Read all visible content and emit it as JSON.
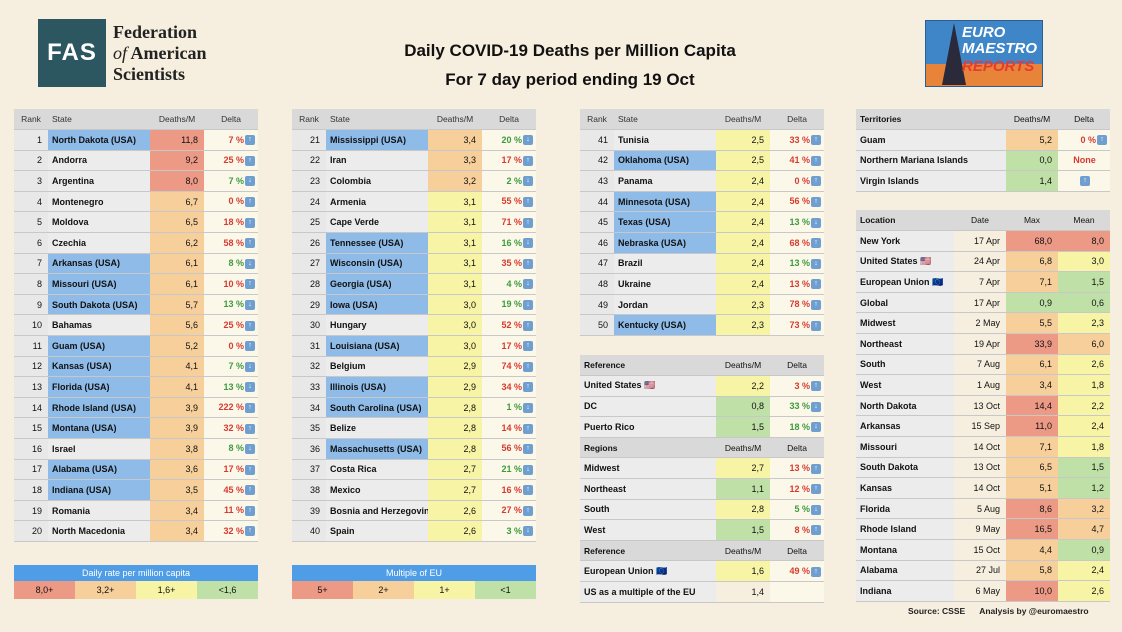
{
  "logo": {
    "abbr": "FAS",
    "line1": "Federation",
    "line2a": "of",
    "line2b": " American",
    "line3": "Scientists"
  },
  "title": {
    "line1": "Daily COVID-19 Deaths per Million Capita",
    "line2": "For 7 day period ending 19 Oct"
  },
  "badge": {
    "line1": "EURO",
    "line2": "MAESTRO",
    "line3": "REPORTS"
  },
  "headers": {
    "rank": "Rank",
    "state": "State",
    "deaths": "Deaths/M",
    "delta": "Delta"
  },
  "rows": [
    {
      "rank": "1",
      "name": "North Dakota (USA)",
      "usa": true,
      "val": "11,8",
      "cls": "v8",
      "delta": "7 %",
      "dir": "up"
    },
    {
      "rank": "2",
      "name": "Andorra",
      "usa": false,
      "val": "9,2",
      "cls": "v8",
      "delta": "25 %",
      "dir": "up"
    },
    {
      "rank": "3",
      "name": "Argentina",
      "usa": false,
      "val": "8,0",
      "cls": "v8",
      "delta": "7 %",
      "dir": "down"
    },
    {
      "rank": "4",
      "name": "Montenegro",
      "usa": false,
      "val": "6,7",
      "cls": "v3",
      "delta": "0 %",
      "dir": "up"
    },
    {
      "rank": "5",
      "name": "Moldova",
      "usa": false,
      "val": "6,5",
      "cls": "v3",
      "delta": "18 %",
      "dir": "up"
    },
    {
      "rank": "6",
      "name": "Czechia",
      "usa": false,
      "val": "6,2",
      "cls": "v3",
      "delta": "58 %",
      "dir": "up"
    },
    {
      "rank": "7",
      "name": "Arkansas (USA)",
      "usa": true,
      "val": "6,1",
      "cls": "v3",
      "delta": "8 %",
      "dir": "down"
    },
    {
      "rank": "8",
      "name": "Missouri (USA)",
      "usa": true,
      "val": "6,1",
      "cls": "v3",
      "delta": "10 %",
      "dir": "up"
    },
    {
      "rank": "9",
      "name": "South Dakota (USA)",
      "usa": true,
      "val": "5,7",
      "cls": "v3",
      "delta": "13 %",
      "dir": "down"
    },
    {
      "rank": "10",
      "name": "Bahamas",
      "usa": false,
      "val": "5,6",
      "cls": "v3",
      "delta": "25 %",
      "dir": "up"
    },
    {
      "rank": "11",
      "name": "Guam (USA)",
      "usa": true,
      "val": "5,2",
      "cls": "v3",
      "delta": "0 %",
      "dir": "up"
    },
    {
      "rank": "12",
      "name": "Kansas (USA)",
      "usa": true,
      "val": "4,1",
      "cls": "v3",
      "delta": "7 %",
      "dir": "down"
    },
    {
      "rank": "13",
      "name": "Florida (USA)",
      "usa": true,
      "val": "4,1",
      "cls": "v3",
      "delta": "13 %",
      "dir": "down"
    },
    {
      "rank": "14",
      "name": "Rhode Island (USA)",
      "usa": true,
      "val": "3,9",
      "cls": "v3",
      "delta": "222 %",
      "dir": "up"
    },
    {
      "rank": "15",
      "name": "Montana (USA)",
      "usa": true,
      "val": "3,9",
      "cls": "v3",
      "delta": "32 %",
      "dir": "up"
    },
    {
      "rank": "16",
      "name": "Israel",
      "usa": false,
      "val": "3,8",
      "cls": "v3",
      "delta": "8 %",
      "dir": "down"
    },
    {
      "rank": "17",
      "name": "Alabama (USA)",
      "usa": true,
      "val": "3,6",
      "cls": "v3",
      "delta": "17 %",
      "dir": "up"
    },
    {
      "rank": "18",
      "name": "Indiana (USA)",
      "usa": true,
      "val": "3,5",
      "cls": "v3",
      "delta": "45 %",
      "dir": "up"
    },
    {
      "rank": "19",
      "name": "Romania",
      "usa": false,
      "val": "3,4",
      "cls": "v3",
      "delta": "11 %",
      "dir": "up"
    },
    {
      "rank": "20",
      "name": "North Macedonia",
      "usa": false,
      "val": "3,4",
      "cls": "v3",
      "delta": "32 %",
      "dir": "up"
    },
    {
      "rank": "21",
      "name": "Mississippi (USA)",
      "usa": true,
      "val": "3,4",
      "cls": "v3",
      "delta": "20 %",
      "dir": "down"
    },
    {
      "rank": "22",
      "name": "Iran",
      "usa": false,
      "val": "3,3",
      "cls": "v3",
      "delta": "17 %",
      "dir": "up"
    },
    {
      "rank": "23",
      "name": "Colombia",
      "usa": false,
      "val": "3,2",
      "cls": "v3",
      "delta": "2 %",
      "dir": "down"
    },
    {
      "rank": "24",
      "name": "Armenia",
      "usa": false,
      "val": "3,1",
      "cls": "v1",
      "delta": "55 %",
      "dir": "up"
    },
    {
      "rank": "25",
      "name": "Cape Verde",
      "usa": false,
      "val": "3,1",
      "cls": "v1",
      "delta": "71 %",
      "dir": "up"
    },
    {
      "rank": "26",
      "name": "Tennessee (USA)",
      "usa": true,
      "val": "3,1",
      "cls": "v1",
      "delta": "16 %",
      "dir": "down"
    },
    {
      "rank": "27",
      "name": "Wisconsin (USA)",
      "usa": true,
      "val": "3,1",
      "cls": "v1",
      "delta": "35 %",
      "dir": "up"
    },
    {
      "rank": "28",
      "name": "Georgia (USA)",
      "usa": true,
      "val": "3,1",
      "cls": "v1",
      "delta": "4 %",
      "dir": "down"
    },
    {
      "rank": "29",
      "name": "Iowa (USA)",
      "usa": true,
      "val": "3,0",
      "cls": "v1",
      "delta": "19 %",
      "dir": "down"
    },
    {
      "rank": "30",
      "name": "Hungary",
      "usa": false,
      "val": "3,0",
      "cls": "v1",
      "delta": "52 %",
      "dir": "up"
    },
    {
      "rank": "31",
      "name": "Louisiana (USA)",
      "usa": true,
      "val": "3,0",
      "cls": "v1",
      "delta": "17 %",
      "dir": "up"
    },
    {
      "rank": "32",
      "name": "Belgium",
      "usa": false,
      "val": "2,9",
      "cls": "v1",
      "delta": "74 %",
      "dir": "up"
    },
    {
      "rank": "33",
      "name": "Illinois (USA)",
      "usa": true,
      "val": "2,9",
      "cls": "v1",
      "delta": "34 %",
      "dir": "up"
    },
    {
      "rank": "34",
      "name": "South Carolina (USA)",
      "usa": true,
      "val": "2,8",
      "cls": "v1",
      "delta": "1 %",
      "dir": "down"
    },
    {
      "rank": "35",
      "name": "Belize",
      "usa": false,
      "val": "2,8",
      "cls": "v1",
      "delta": "14 %",
      "dir": "up"
    },
    {
      "rank": "36",
      "name": "Massachusetts (USA)",
      "usa": true,
      "val": "2,8",
      "cls": "v1",
      "delta": "56 %",
      "dir": "up"
    },
    {
      "rank": "37",
      "name": "Costa Rica",
      "usa": false,
      "val": "2,7",
      "cls": "v1",
      "delta": "21 %",
      "dir": "down"
    },
    {
      "rank": "38",
      "name": "Mexico",
      "usa": false,
      "val": "2,7",
      "cls": "v1",
      "delta": "16 %",
      "dir": "up"
    },
    {
      "rank": "39",
      "name": "Bosnia and Herzegovina",
      "usa": false,
      "val": "2,6",
      "cls": "v1",
      "delta": "27 %",
      "dir": "up"
    },
    {
      "rank": "40",
      "name": "Spain",
      "usa": false,
      "val": "2,6",
      "cls": "v1",
      "delta": "3 %",
      "dir": "down"
    },
    {
      "rank": "41",
      "name": "Tunisia",
      "usa": false,
      "val": "2,5",
      "cls": "v1",
      "delta": "33 %",
      "dir": "up"
    },
    {
      "rank": "42",
      "name": "Oklahoma (USA)",
      "usa": true,
      "val": "2,5",
      "cls": "v1",
      "delta": "41 %",
      "dir": "up"
    },
    {
      "rank": "43",
      "name": "Panama",
      "usa": false,
      "val": "2,4",
      "cls": "v1",
      "delta": "0 %",
      "dir": "up"
    },
    {
      "rank": "44",
      "name": "Minnesota (USA)",
      "usa": true,
      "val": "2,4",
      "cls": "v1",
      "delta": "56 %",
      "dir": "up"
    },
    {
      "rank": "45",
      "name": "Texas (USA)",
      "usa": true,
      "val": "2,4",
      "cls": "v1",
      "delta": "13 %",
      "dir": "down"
    },
    {
      "rank": "46",
      "name": "Nebraska (USA)",
      "usa": true,
      "val": "2,4",
      "cls": "v1",
      "delta": "68 %",
      "dir": "up"
    },
    {
      "rank": "47",
      "name": "Brazil",
      "usa": false,
      "val": "2,4",
      "cls": "v1",
      "delta": "13 %",
      "dir": "down"
    },
    {
      "rank": "48",
      "name": "Ukraine",
      "usa": false,
      "val": "2,4",
      "cls": "v1",
      "delta": "13 %",
      "dir": "up"
    },
    {
      "rank": "49",
      "name": "Jordan",
      "usa": false,
      "val": "2,3",
      "cls": "v1",
      "delta": "78 %",
      "dir": "up"
    },
    {
      "rank": "50",
      "name": "Kentucky (USA)",
      "usa": true,
      "val": "2,3",
      "cls": "v1",
      "delta": "73 %",
      "dir": "up"
    }
  ],
  "ref": {
    "reference": "Reference",
    "regions": "Regions",
    "refRows": [
      {
        "name": "United States 🇺🇸",
        "val": "2,2",
        "cls": "v1",
        "delta": "3 %",
        "dir": "up"
      },
      {
        "name": "DC",
        "val": "0,8",
        "cls": "v0",
        "delta": "33 %",
        "dir": "down"
      },
      {
        "name": "Puerto Rico",
        "val": "1,5",
        "cls": "v0",
        "delta": "18 %",
        "dir": "down"
      }
    ],
    "regionRows": [
      {
        "name": "Midwest",
        "val": "2,7",
        "cls": "v1",
        "delta": "13 %",
        "dir": "up"
      },
      {
        "name": "Northeast",
        "val": "1,1",
        "cls": "v0",
        "delta": "12 %",
        "dir": "up"
      },
      {
        "name": "South",
        "val": "2,8",
        "cls": "v1",
        "delta": "5 %",
        "dir": "down"
      },
      {
        "name": "West",
        "val": "1,5",
        "cls": "v0",
        "delta": "8 %",
        "dir": "up"
      }
    ],
    "euRows": [
      {
        "name": "European Union 🇪🇺",
        "val": "1,6",
        "cls": "v1",
        "delta": "49 %",
        "dir": "up"
      },
      {
        "name": "US as a multiple of the EU",
        "val": "1,4",
        "cls": "",
        "delta": "",
        "dir": ""
      }
    ]
  },
  "territories": {
    "head": "Territories",
    "rows": [
      {
        "name": "Guam",
        "val": "5,2",
        "cls": "v3",
        "delta": "0 %",
        "dir": "up"
      },
      {
        "name": "Northern Mariana Islands",
        "val": "0,0",
        "cls": "v0",
        "delta": "None",
        "dir": "none"
      },
      {
        "name": "Virgin Islands",
        "val": "1,4",
        "cls": "v0",
        "delta": "",
        "dir": "blank"
      }
    ]
  },
  "peak": {
    "headers": [
      "Location",
      "Date",
      "Max",
      "Mean"
    ],
    "rows": [
      {
        "loc": "New York",
        "date": "17 Apr",
        "max": "68,0",
        "maxc": "v8",
        "mean": "8,0",
        "meanc": "v8"
      },
      {
        "loc": "United States 🇺🇸",
        "date": "24 Apr",
        "max": "6,8",
        "maxc": "v3",
        "mean": "3,0",
        "meanc": "v1"
      },
      {
        "loc": "European Union 🇪🇺",
        "date": "7 Apr",
        "max": "7,1",
        "maxc": "v3",
        "mean": "1,5",
        "meanc": "v0"
      },
      {
        "loc": "Global",
        "date": "17 Apr",
        "max": "0,9",
        "maxc": "v0",
        "mean": "0,6",
        "meanc": "v0"
      },
      {
        "loc": "Midwest",
        "date": "2 May",
        "max": "5,5",
        "maxc": "v3",
        "mean": "2,3",
        "meanc": "v1"
      },
      {
        "loc": "Northeast",
        "date": "19 Apr",
        "max": "33,9",
        "maxc": "v8",
        "mean": "6,0",
        "meanc": "v3"
      },
      {
        "loc": "South",
        "date": "7 Aug",
        "max": "6,1",
        "maxc": "v3",
        "mean": "2,6",
        "meanc": "v1"
      },
      {
        "loc": "West",
        "date": "1 Aug",
        "max": "3,4",
        "maxc": "v3",
        "mean": "1,8",
        "meanc": "v1"
      },
      {
        "loc": "North Dakota",
        "date": "13 Oct",
        "max": "14,4",
        "maxc": "v8",
        "mean": "2,2",
        "meanc": "v1"
      },
      {
        "loc": "Arkansas",
        "date": "15 Sep",
        "max": "11,0",
        "maxc": "v8",
        "mean": "2,4",
        "meanc": "v1"
      },
      {
        "loc": "Missouri",
        "date": "14 Oct",
        "max": "7,1",
        "maxc": "v3",
        "mean": "1,8",
        "meanc": "v1"
      },
      {
        "loc": "South Dakota",
        "date": "13 Oct",
        "max": "6,5",
        "maxc": "v3",
        "mean": "1,5",
        "meanc": "v0"
      },
      {
        "loc": "Kansas",
        "date": "14 Oct",
        "max": "5,1",
        "maxc": "v3",
        "mean": "1,2",
        "meanc": "v0"
      },
      {
        "loc": "Florida",
        "date": "5 Aug",
        "max": "8,6",
        "maxc": "v8",
        "mean": "3,2",
        "meanc": "v3"
      },
      {
        "loc": "Rhode Island",
        "date": "9 May",
        "max": "16,5",
        "maxc": "v8",
        "mean": "4,7",
        "meanc": "v3"
      },
      {
        "loc": "Montana",
        "date": "15 Oct",
        "max": "4,4",
        "maxc": "v3",
        "mean": "0,9",
        "meanc": "v0"
      },
      {
        "loc": "Alabama",
        "date": "27 Jul",
        "max": "5,8",
        "maxc": "v3",
        "mean": "2,4",
        "meanc": "v1"
      },
      {
        "loc": "Indiana",
        "date": "6 May",
        "max": "10,0",
        "maxc": "v8",
        "mean": "2,6",
        "meanc": "v1"
      }
    ]
  },
  "legend1": {
    "title": "Daily rate per million capita",
    "items": [
      "8,0+",
      "3,2+",
      "1,6+",
      "<1,6"
    ]
  },
  "legend2": {
    "title": "Multiple of EU",
    "items": [
      "5+",
      "2+",
      "1+",
      "<1"
    ]
  },
  "footer": {
    "source": "Source: CSSE",
    "analysis": "Analysis by @euromaestro"
  },
  "colors": {
    "v8": "#ec9986",
    "v3": "#f6cf9a",
    "v1": "#f7f4a5",
    "v0": "#bfe0a6",
    "usa": "#8ebbe8",
    "legend_head": "#4e9de6"
  }
}
